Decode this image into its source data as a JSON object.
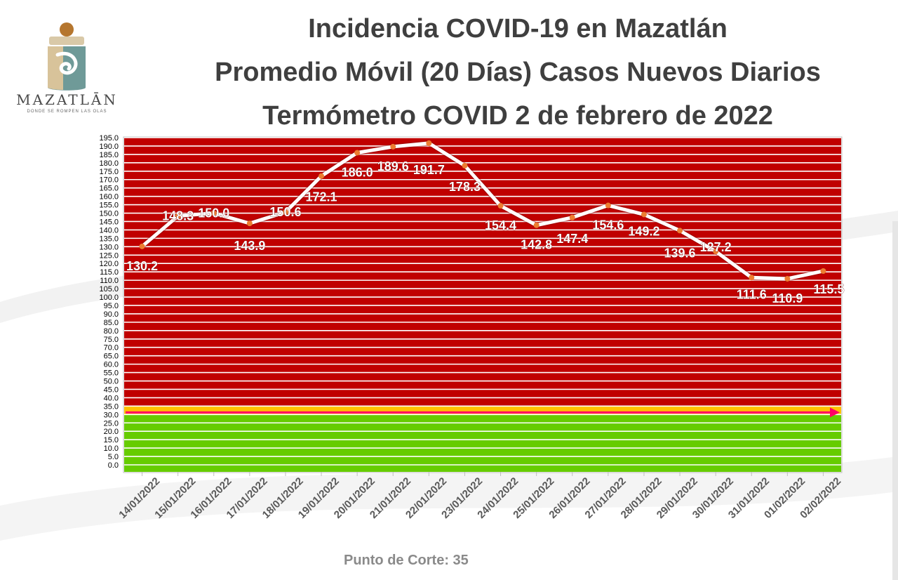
{
  "header": {
    "title_line1": "Incidencia COVID-19 en Mazatlán",
    "title_line2": "Promedio Móvil (20 Días) Casos Nuevos Diarios",
    "title_line3": "Termómetro COVID 2 de febrero de 2022"
  },
  "logo": {
    "name": "MAZATLĀN",
    "tagline": "DONDE SE ROMPEN LAS OLAS"
  },
  "footer": {
    "cutoff_label": "Punto de Corte: 35"
  },
  "colors": {
    "red_zone": "#c00000",
    "yellow_band": "#ffc000",
    "green_zone": "#66cc00",
    "line": "#ffffff",
    "marker": "#ed7d31",
    "cutoff_arrow": "#ff0066"
  },
  "chart_data": {
    "type": "line",
    "categories": [
      "14/01/2022",
      "15/01/2022",
      "16/01/2022",
      "17/01/2022",
      "18/01/2022",
      "19/01/2022",
      "20/01/2022",
      "21/01/2022",
      "22/01/2022",
      "23/01/2022",
      "24/01/2022",
      "25/01/2022",
      "26/01/2022",
      "27/01/2022",
      "28/01/2022",
      "29/01/2022",
      "30/01/2022",
      "31/01/2022",
      "01/02/2022",
      "02/02/2022"
    ],
    "values": [
      130.2,
      148.3,
      150.0,
      143.9,
      150.6,
      172.1,
      186.0,
      189.6,
      191.7,
      178.3,
      154.4,
      142.8,
      147.4,
      154.6,
      149.2,
      139.6,
      127.2,
      111.6,
      110.9,
      115.5
    ],
    "data_labels": [
      "130.2",
      "148.3",
      "150.0",
      "143.9",
      "150.6",
      "172.1",
      "186.0",
      "189.6",
      "191.7",
      "178.3",
      "154.4",
      "142.8",
      "147.4",
      "154.6",
      "149.2",
      "139.6",
      "127.2",
      "111.6",
      "110.9",
      "115.5"
    ],
    "ylim": [
      0,
      195
    ],
    "ytick_step": 5,
    "ytick_labels": [
      "0.0",
      "5.0",
      "10.0",
      "15.0",
      "20.0",
      "25.0",
      "30.0",
      "35.0",
      "40.0",
      "45.0",
      "50.0",
      "55.0",
      "60.0",
      "65.0",
      "70.0",
      "75.0",
      "80.0",
      "85.0",
      "90.0",
      "95.0",
      "100.0",
      "105.0",
      "110.0",
      "115.0",
      "120.0",
      "125.0",
      "130.0",
      "135.0",
      "140.0",
      "145.0",
      "150.0",
      "155.0",
      "160.0",
      "165.0",
      "170.0",
      "175.0",
      "180.0",
      "185.0",
      "190.0",
      "195.0"
    ],
    "zones": [
      {
        "name": "green",
        "from": 0,
        "to": 30
      },
      {
        "name": "yellow",
        "from": 30,
        "to": 35
      },
      {
        "name": "red",
        "from": 35,
        "to": 195
      }
    ],
    "cutoff": 35,
    "grid": true
  }
}
